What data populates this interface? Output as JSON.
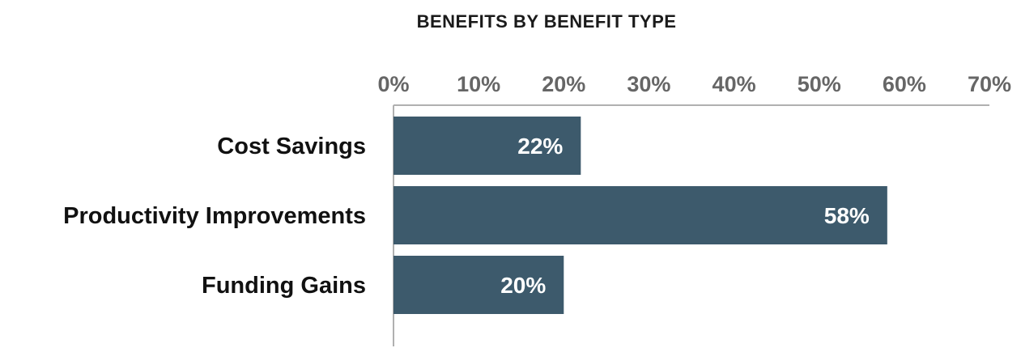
{
  "chart_data": {
    "type": "bar",
    "orientation": "horizontal",
    "title": "BENEFITS BY BENEFIT TYPE",
    "xlabel": "",
    "ylabel": "",
    "categories": [
      "Cost Savings",
      "Productivity Improvements",
      "Funding Gains"
    ],
    "values": [
      22,
      58,
      20
    ],
    "value_labels": [
      "22%",
      "58%",
      "20%"
    ],
    "xlim": [
      0,
      70
    ],
    "x_ticks": [
      0,
      10,
      20,
      30,
      40,
      50,
      60,
      70
    ],
    "x_tick_labels": [
      "0%",
      "10%",
      "20%",
      "30%",
      "40%",
      "50%",
      "60%",
      "70%"
    ],
    "axis_position": "top",
    "grid": false,
    "legend": "none",
    "bar_color": "#3d5a6c",
    "axis_color": "#b0b0b0"
  }
}
